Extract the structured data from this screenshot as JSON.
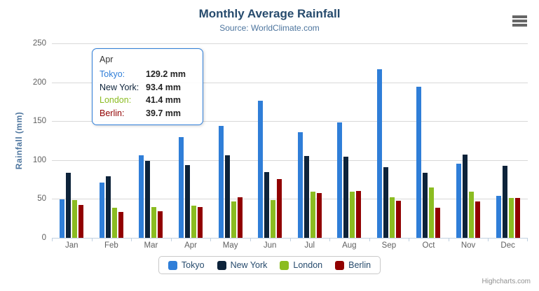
{
  "header": {
    "title": "Monthly Average Rainfall",
    "subtitle": "Source: WorldClimate.com",
    "menu_icon": "hamburger-menu-icon"
  },
  "chart_data": {
    "type": "bar",
    "title": "Monthly Average Rainfall",
    "subtitle": "Source: WorldClimate.com",
    "categories": [
      "Jan",
      "Feb",
      "Mar",
      "Apr",
      "May",
      "Jun",
      "Jul",
      "Aug",
      "Sep",
      "Oct",
      "Nov",
      "Dec"
    ],
    "series": [
      {
        "name": "Tokyo",
        "color": "#2f7ed8",
        "values": [
          49.9,
          71.5,
          106.4,
          129.2,
          144.0,
          176.0,
          135.6,
          148.5,
          216.4,
          194.1,
          95.6,
          54.4
        ]
      },
      {
        "name": "New York",
        "color": "#0d233a",
        "values": [
          83.6,
          78.8,
          98.5,
          93.4,
          106.0,
          84.5,
          105.0,
          104.3,
          91.2,
          83.5,
          106.6,
          92.3
        ]
      },
      {
        "name": "London",
        "color": "#8bbc21",
        "values": [
          48.9,
          38.8,
          39.3,
          41.4,
          47.0,
          48.3,
          59.0,
          59.6,
          52.4,
          65.2,
          59.3,
          51.2
        ]
      },
      {
        "name": "Berlin",
        "color": "#910000",
        "values": [
          42.4,
          33.2,
          34.5,
          39.7,
          52.6,
          75.5,
          57.4,
          60.4,
          47.6,
          39.1,
          46.8,
          51.1
        ]
      }
    ],
    "xlabel": "",
    "ylabel": "Rainfall (mm)",
    "ylim": [
      0,
      250
    ],
    "yticks": [
      0,
      50,
      100,
      150,
      200,
      250
    ],
    "grid": true,
    "legend_position": "bottom"
  },
  "tooltip": {
    "header": "Apr",
    "border_color": "#2f7ed8",
    "rows": [
      {
        "label": "Tokyo:",
        "value": "129.2 mm",
        "color": "#2f7ed8"
      },
      {
        "label": "New York:",
        "value": "93.4 mm",
        "color": "#0d233a"
      },
      {
        "label": "London:",
        "value": "41.4 mm",
        "color": "#8bbc21"
      },
      {
        "label": "Berlin:",
        "value": "39.7 mm",
        "color": "#910000"
      }
    ]
  },
  "credits": {
    "label": "Highcharts.com"
  },
  "theme": {
    "title_color": "#274b6d",
    "subtitle_color": "#4d759e",
    "axis_label_color": "#606060",
    "gridline_color": "#d8d8d8",
    "axis_line_color": "#c0d0e0",
    "legend_border_color": "#c9c9c9",
    "credits_color": "#909090"
  }
}
